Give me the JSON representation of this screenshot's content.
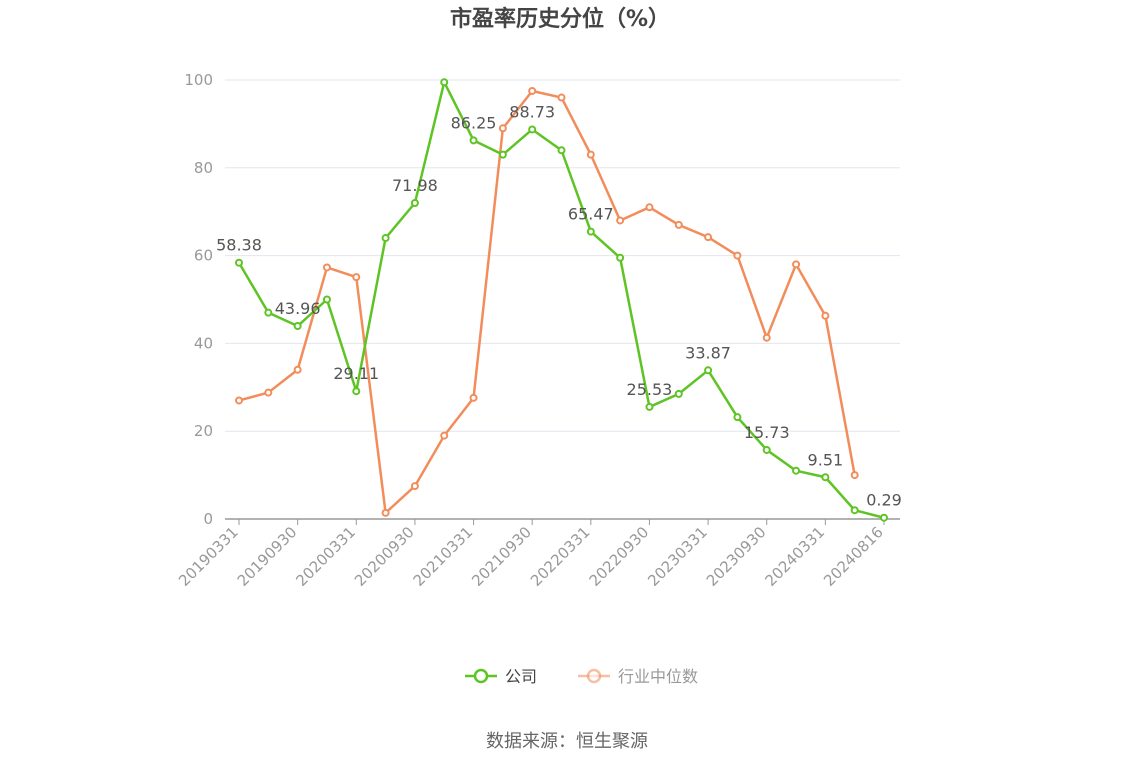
{
  "chart_data": {
    "type": "line",
    "title": "市盈率历史分位（%）",
    "xlabel": "",
    "ylabel": "",
    "ylim": [
      0,
      100
    ],
    "yticks": [
      0,
      20,
      40,
      60,
      80,
      100
    ],
    "x": [
      "20190331",
      "20190630",
      "20190930",
      "20191231",
      "20200331",
      "20200630",
      "20200930",
      "20201231",
      "20210331",
      "20210630",
      "20210930",
      "20211231",
      "20220331",
      "20220630",
      "20220930",
      "20221231",
      "20230331",
      "20230630",
      "20230930",
      "20231231",
      "20240331",
      "20240630",
      "20240816"
    ],
    "xtick_labels": [
      "20190331",
      "20190930",
      "20200331",
      "20200930",
      "20210331",
      "20210930",
      "20220331",
      "20220930",
      "20230331",
      "20230930",
      "20240331",
      "20240816"
    ],
    "grid": true,
    "legend_position": "bottom",
    "series": [
      {
        "name": "公司",
        "color": "#5ec424",
        "values": [
          58.38,
          47,
          43.96,
          50,
          29.11,
          64,
          71.98,
          99.5,
          86.25,
          83,
          88.73,
          84,
          65.47,
          59.5,
          25.53,
          28.5,
          33.87,
          23.2,
          15.73,
          11,
          9.51,
          2,
          0.29
        ],
        "labels": [
          "58.38",
          "",
          "43.96",
          "",
          "29.11",
          "",
          "71.98",
          "",
          "86.25",
          "",
          "88.73",
          "",
          "65.47",
          "",
          "25.53",
          "",
          "33.87",
          "",
          "15.73",
          "",
          "9.51",
          "",
          "0.29"
        ]
      },
      {
        "name": "行业中位数",
        "color": "#f28d5b",
        "values": [
          27,
          28.8,
          34,
          57.3,
          55.1,
          1.4,
          7.5,
          19,
          27.6,
          89,
          97.5,
          96,
          83,
          68,
          71,
          67,
          64.2,
          60,
          41.3,
          58,
          46.3,
          10,
          null
        ]
      }
    ]
  },
  "source_text": "数据来源：恒生聚源"
}
